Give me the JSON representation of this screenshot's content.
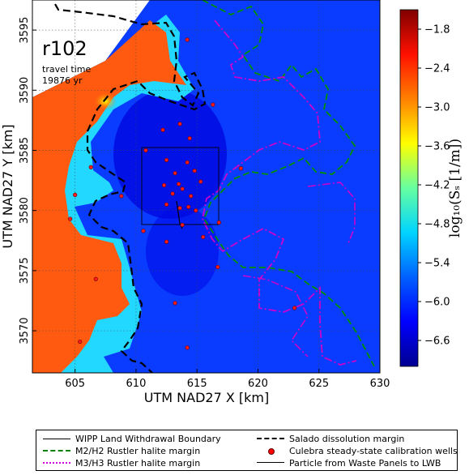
{
  "map": {
    "run_label": "r102",
    "travel_time_label": "travel time",
    "travel_time_value": "19876 yr",
    "x_label": "UTM NAD27 X [km]",
    "y_label": "UTM NAD27 Y [km]",
    "x_ticks": [
      "605",
      "610",
      "615",
      "620",
      "625",
      "630"
    ],
    "y_ticks": [
      "3595",
      "3590",
      "3585",
      "3580",
      "3575",
      "3570"
    ],
    "x_range": [
      601.5,
      630
    ],
    "y_range": [
      3566.5,
      3597.5
    ],
    "grid": true,
    "colorbar": {
      "label": "log₁₀(Sₛ [1/m])",
      "ticks": [
        "−1.8",
        "−2.4",
        "−3.0",
        "−3.6",
        "−4.2",
        "−4.8",
        "−5.4",
        "−6.0",
        "−6.6"
      ],
      "range": [
        -7.0,
        -1.5
      ],
      "colors": [
        "#00008f",
        "#0000ff",
        "#0060ff",
        "#00d4ff",
        "#66ffa0",
        "#ffff00",
        "#ff8000",
        "#ff1000",
        "#800000"
      ]
    },
    "wells": [
      [
        614.2,
        3594.2
      ],
      [
        616.3,
        3588.8
      ],
      [
        612.2,
        3586.7
      ],
      [
        613.6,
        3587.2
      ],
      [
        614.4,
        3586.0
      ],
      [
        606.3,
        3583.6
      ],
      [
        605.0,
        3581.3
      ],
      [
        608.8,
        3581.2
      ],
      [
        610.8,
        3585.0
      ],
      [
        612.5,
        3584.2
      ],
      [
        613.2,
        3583.1
      ],
      [
        613.5,
        3582.2
      ],
      [
        614.2,
        3584.0
      ],
      [
        614.8,
        3583.3
      ],
      [
        612.3,
        3582.1
      ],
      [
        613.0,
        3581.4
      ],
      [
        612.5,
        3580.5
      ],
      [
        613.6,
        3580.2
      ],
      [
        614.3,
        3580.3
      ],
      [
        614.5,
        3581.2
      ],
      [
        615.3,
        3582.4
      ],
      [
        618.6,
        3583.5
      ],
      [
        616.8,
        3579.0
      ],
      [
        610.6,
        3578.3
      ],
      [
        612.5,
        3577.4
      ],
      [
        615.5,
        3577.8
      ],
      [
        613.8,
        3578.8
      ],
      [
        606.7,
        3574.3
      ],
      [
        604.6,
        3579.3
      ],
      [
        613.2,
        3572.3
      ],
      [
        616.7,
        3575.3
      ],
      [
        623.0,
        3571.9
      ],
      [
        614.2,
        3568.6
      ],
      [
        605.4,
        3569.1
      ],
      [
        614.9,
        3580.0
      ],
      [
        613.8,
        3581.8
      ]
    ]
  },
  "legend": {
    "items": [
      {
        "label": "WIPP Land Withdrawal Boundary",
        "color": "#000000",
        "style": "solid-thin"
      },
      {
        "label": "Salado dissolution margin",
        "color": "#000000",
        "style": "dashed-thick"
      },
      {
        "label": "M2/H2 Rustler halite margin",
        "color": "#008000",
        "style": "dashed"
      },
      {
        "label": "Culebra steady-state calibration wells",
        "color": "#ff0000",
        "style": "dot"
      },
      {
        "label": "M3/H3 Rustler halite margin",
        "color": "#cc00cc",
        "style": "dashdot"
      },
      {
        "label": "Particle from Waste Panels to LWB",
        "color": "#000000",
        "style": "solid"
      }
    ]
  }
}
